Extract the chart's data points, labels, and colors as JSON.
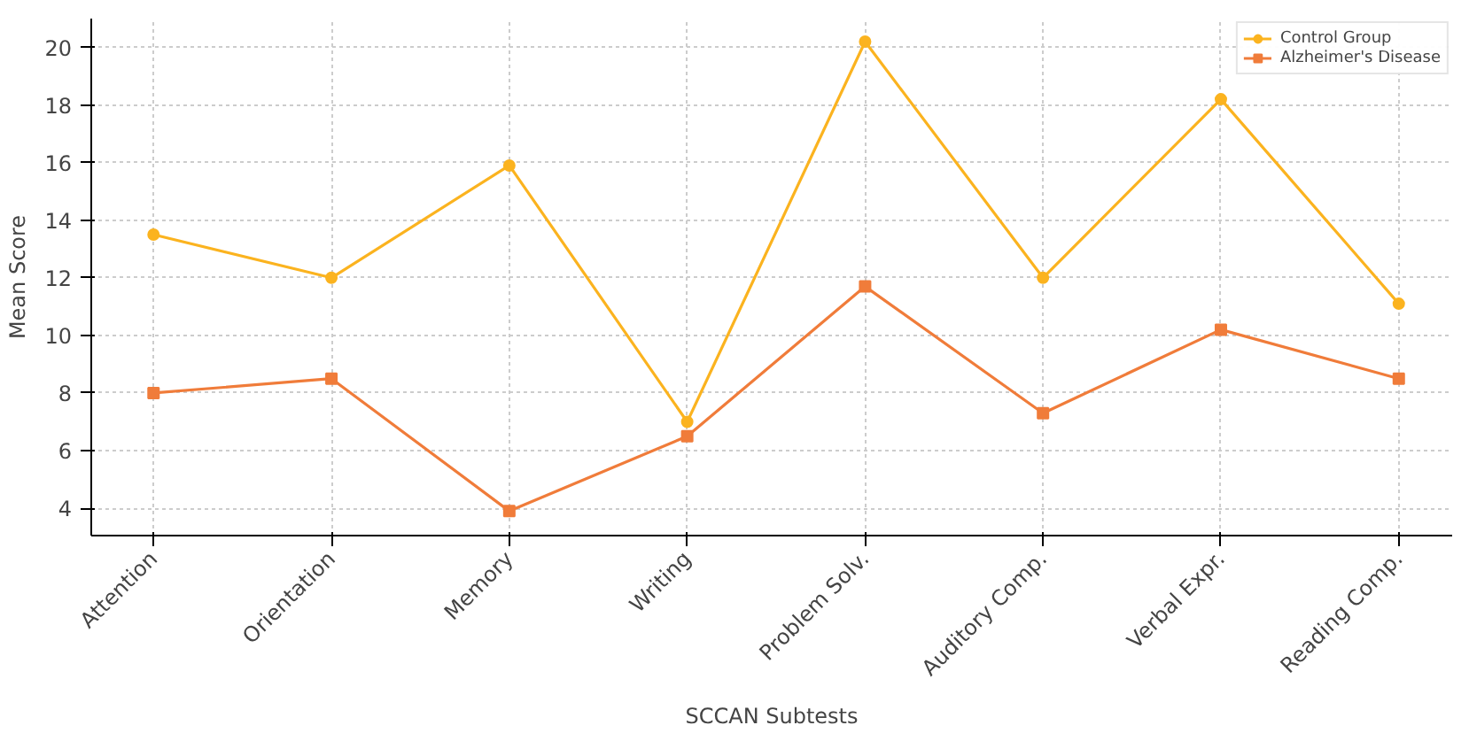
{
  "chart_data": {
    "type": "line",
    "xlabel": "SCCAN Subtests",
    "ylabel": "Mean Score",
    "categories": [
      "Attention",
      "Orientation",
      "Memory",
      "Writing",
      "Problem Solv.",
      "Auditory Comp.",
      "Verbal Expr.",
      "Reading Comp."
    ],
    "series": [
      {
        "name": "Control Group",
        "color": "#fbb31f",
        "marker": "circle",
        "values": [
          13.5,
          12.0,
          15.9,
          7.0,
          20.2,
          12.0,
          18.2,
          11.1
        ]
      },
      {
        "name": "Alzheimer's Disease",
        "color": "#f07c3a",
        "marker": "square",
        "values": [
          8.0,
          8.5,
          3.9,
          6.5,
          11.7,
          7.3,
          10.2,
          8.5
        ]
      }
    ],
    "ylim": [
      3.05,
      21.0
    ],
    "yticks": [
      4,
      6,
      8,
      10,
      12,
      14,
      16,
      18,
      20
    ],
    "grid": true,
    "legend": "top right",
    "line_style": "solid"
  }
}
